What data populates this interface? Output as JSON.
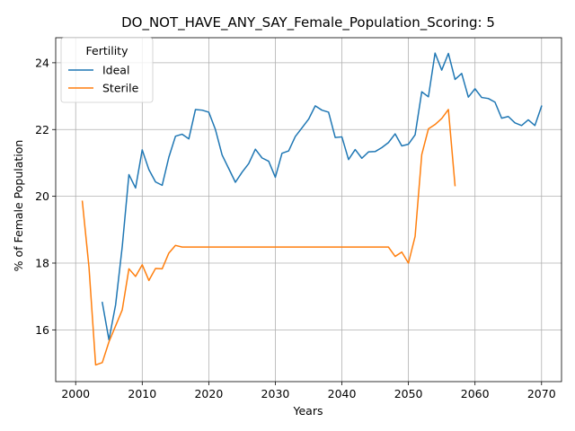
{
  "chart_data": {
    "type": "line",
    "title": "DO_NOT_HAVE_ANY_SAY_Female_Population_Scoring: 5",
    "xlabel": "Years",
    "ylabel": "% of Female Population",
    "xlim": [
      1997,
      2073
    ],
    "ylim": [
      14.45,
      24.75
    ],
    "xticks": [
      2000,
      2010,
      2020,
      2030,
      2040,
      2050,
      2060,
      2070
    ],
    "yticks": [
      16,
      18,
      20,
      22,
      24
    ],
    "grid": true,
    "legend": {
      "title": "Fertility",
      "placement": "top-left"
    },
    "series": [
      {
        "name": "Ideal",
        "color": "#1f77b4",
        "x": [
          2004,
          2005,
          2006,
          2007,
          2008,
          2009,
          2010,
          2011,
          2012,
          2013,
          2014,
          2015,
          2016,
          2017,
          2018,
          2019,
          2020,
          2021,
          2022,
          2023,
          2024,
          2025,
          2026,
          2027,
          2028,
          2029,
          2030,
          2031,
          2032,
          2033,
          2034,
          2035,
          2036,
          2037,
          2038,
          2039,
          2040,
          2041,
          2042,
          2043,
          2044,
          2045,
          2046,
          2047,
          2048,
          2049,
          2050,
          2051,
          2052,
          2053,
          2054,
          2055,
          2056,
          2057,
          2058,
          2059,
          2060,
          2061,
          2062,
          2063,
          2064,
          2065,
          2066,
          2067,
          2068,
          2069,
          2070
        ],
        "values": [
          16.82,
          15.7,
          16.75,
          18.5,
          20.65,
          20.25,
          21.39,
          20.8,
          20.43,
          20.33,
          21.17,
          21.8,
          21.86,
          21.72,
          22.6,
          22.58,
          22.52,
          22.0,
          21.24,
          20.83,
          20.42,
          20.72,
          20.98,
          21.41,
          21.15,
          21.05,
          20.57,
          21.29,
          21.36,
          21.79,
          22.05,
          22.31,
          22.71,
          22.58,
          22.52,
          21.76,
          21.78,
          21.1,
          21.4,
          21.14,
          21.33,
          21.34,
          21.46,
          21.61,
          21.87,
          21.51,
          21.56,
          21.84,
          23.13,
          22.98,
          24.29,
          23.78,
          24.28,
          23.5,
          23.68,
          22.97,
          23.22,
          22.96,
          22.93,
          22.82,
          22.34,
          22.39,
          22.2,
          22.12,
          22.29,
          22.12,
          22.7
        ]
      },
      {
        "name": "Sterile",
        "color": "#ff7f0e",
        "x": [
          2001,
          2002,
          2003,
          2004,
          2005,
          2006,
          2007,
          2008,
          2009,
          2010,
          2011,
          2012,
          2013,
          2014,
          2015,
          2016,
          2017,
          2018,
          2019,
          2020,
          2021,
          2022,
          2023,
          2024,
          2025,
          2026,
          2027,
          2028,
          2029,
          2030,
          2031,
          2032,
          2033,
          2034,
          2035,
          2036,
          2037,
          2038,
          2039,
          2040,
          2041,
          2042,
          2043,
          2044,
          2045,
          2046,
          2047,
          2048,
          2049,
          2050,
          2051,
          2052,
          2053,
          2054,
          2055,
          2056,
          2057
        ],
        "values": [
          19.85,
          17.88,
          14.95,
          15.02,
          15.64,
          16.12,
          16.6,
          17.83,
          17.6,
          17.95,
          17.48,
          17.84,
          17.83,
          18.3,
          18.53,
          18.48,
          18.48,
          18.48,
          18.48,
          18.48,
          18.48,
          18.48,
          18.48,
          18.48,
          18.48,
          18.48,
          18.48,
          18.48,
          18.48,
          18.48,
          18.48,
          18.48,
          18.48,
          18.48,
          18.48,
          18.48,
          18.48,
          18.48,
          18.48,
          18.48,
          18.48,
          18.48,
          18.48,
          18.48,
          18.48,
          18.48,
          18.48,
          18.2,
          18.33,
          18.0,
          18.8,
          21.25,
          22.02,
          22.15,
          22.33,
          22.6,
          20.32
        ]
      }
    ]
  }
}
